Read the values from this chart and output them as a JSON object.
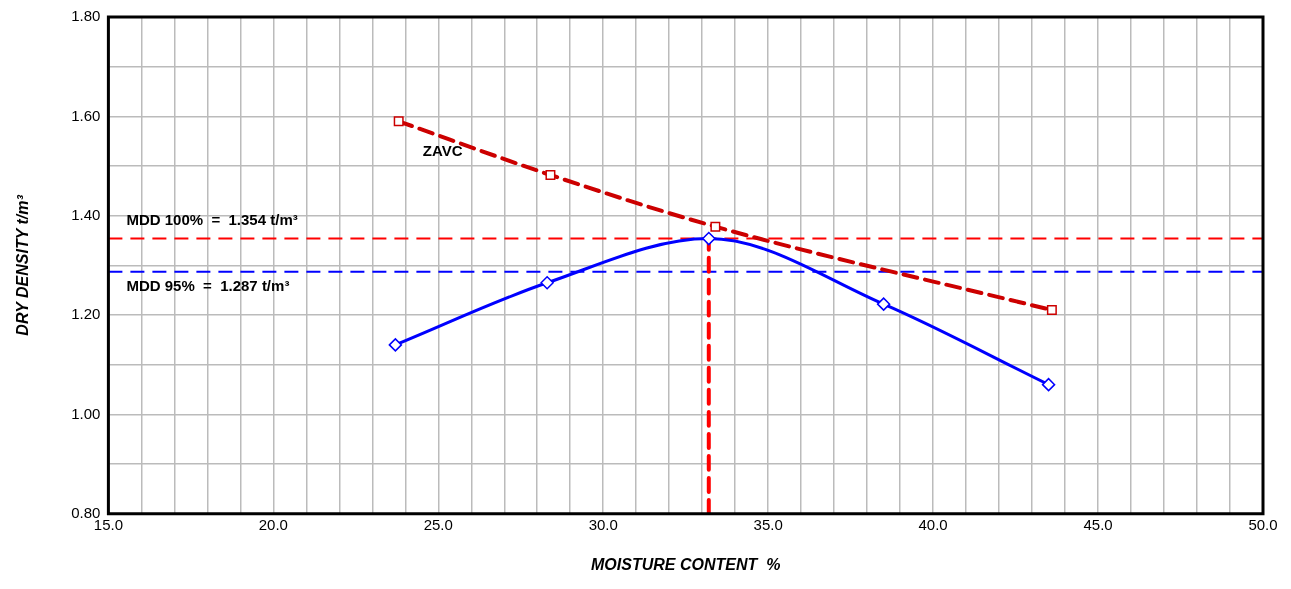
{
  "chart_data": {
    "type": "line",
    "xlabel": "MOISTURE CONTENT  %",
    "ylabel": "DRY DENSITY t/m³",
    "xlim": [
      15,
      50
    ],
    "xticks": [
      {
        "value": 15,
        "label": "15.0"
      },
      {
        "value": 16,
        "label": null
      },
      {
        "value": 17,
        "label": null
      },
      {
        "value": 18,
        "label": null
      },
      {
        "value": 19,
        "label": null
      },
      {
        "value": 20,
        "label": "20.0"
      },
      {
        "value": 21,
        "label": null
      },
      {
        "value": 22,
        "label": null
      },
      {
        "value": 23,
        "label": null
      },
      {
        "value": 24,
        "label": null
      },
      {
        "value": 25,
        "label": "25.0"
      },
      {
        "value": 26,
        "label": null
      },
      {
        "value": 27,
        "label": null
      },
      {
        "value": 28,
        "label": null
      },
      {
        "value": 29,
        "label": null
      },
      {
        "value": 30,
        "label": "30.0"
      },
      {
        "value": 31,
        "label": null
      },
      {
        "value": 32,
        "label": null
      },
      {
        "value": 33,
        "label": null
      },
      {
        "value": 34,
        "label": null
      },
      {
        "value": 35,
        "label": "35.0"
      },
      {
        "value": 36,
        "label": null
      },
      {
        "value": 37,
        "label": null
      },
      {
        "value": 38,
        "label": null
      },
      {
        "value": 39,
        "label": null
      },
      {
        "value": 40,
        "label": "40.0"
      },
      {
        "value": 41,
        "label": null
      },
      {
        "value": 42,
        "label": null
      },
      {
        "value": 43,
        "label": null
      },
      {
        "value": 44,
        "label": null
      },
      {
        "value": 45,
        "label": "45.0"
      },
      {
        "value": 46,
        "label": null
      },
      {
        "value": 47,
        "label": null
      },
      {
        "value": 48,
        "label": null
      },
      {
        "value": 49,
        "label": null
      },
      {
        "value": 50,
        "label": "50.0"
      }
    ],
    "ylim": [
      0.8,
      1.8
    ],
    "yticks": [
      {
        "value": 0.8,
        "label": "0.80"
      },
      {
        "value": 0.9,
        "label": null
      },
      {
        "value": 1.0,
        "label": "1.00"
      },
      {
        "value": 1.1,
        "label": null
      },
      {
        "value": 1.2,
        "label": "1.20"
      },
      {
        "value": 1.3,
        "label": null
      },
      {
        "value": 1.4,
        "label": "1.40"
      },
      {
        "value": 1.5,
        "label": null
      },
      {
        "value": 1.6,
        "label": "1.60"
      },
      {
        "value": 1.7,
        "label": null
      },
      {
        "value": 1.8,
        "label": "1.80"
      }
    ],
    "grid": true,
    "legend": false,
    "series": [
      {
        "color": "#0000ff",
        "marker": "diamond",
        "line_style": "solid",
        "x": [
          23.7,
          28.3,
          33.2,
          38.5,
          43.5
        ],
        "values": [
          1.14,
          1.265,
          1.354,
          1.222,
          1.06
        ]
      },
      {
        "name": "ZAVC",
        "color": "#cc0000",
        "marker": "square",
        "line_style": "dashed",
        "x": [
          23.8,
          28.4,
          33.4,
          43.6
        ],
        "values": [
          1.59,
          1.482,
          1.378,
          1.21
        ]
      },
      {
        "color": "#ff0000",
        "marker": "none",
        "line_style": "dashed",
        "x": [
          33.2,
          33.2
        ],
        "values": [
          0.8,
          1.354
        ]
      }
    ],
    "ref_lines": [
      {
        "axis": "y",
        "value": 1.354,
        "color": "#ff0000",
        "line_style": "dashed",
        "label": "MDD 100%  =  1.354 t/m³"
      },
      {
        "axis": "y",
        "value": 1.287,
        "color": "#0000ff",
        "line_style": "dashed",
        "label": "MDD 95%  =  1.287 t/m³"
      }
    ]
  }
}
